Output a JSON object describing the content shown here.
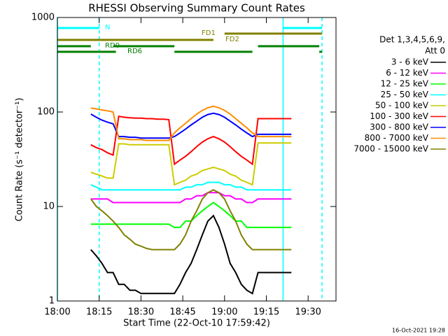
{
  "chart_data": {
    "type": "line",
    "title": "RHESSI Observing Summary Count Rates",
    "x_label": "Start Time (22-Oct-10 17:59:42)",
    "y_label": "Count Rate (s⁻¹ detector⁻¹)",
    "legend_title": [
      "Det 1,3,4,5,6,9,",
      "Att 0"
    ],
    "timestamp": "16-Oct-2021 19:28",
    "log_y": true,
    "xlim": [
      "18:00",
      "19:40"
    ],
    "xticks": [
      "18:00",
      "18:15",
      "18:30",
      "18:45",
      "19:00",
      "19:15",
      "19:30"
    ],
    "ylim": [
      1,
      1000
    ],
    "yticks": [
      1,
      10,
      100,
      1000
    ],
    "x": [
      "18:12",
      "18:14",
      "18:16",
      "18:18",
      "18:20",
      "18:22",
      "18:24",
      "18:26",
      "18:28",
      "18:30",
      "18:32",
      "18:34",
      "18:36",
      "18:38",
      "18:40",
      "18:42",
      "18:44",
      "18:46",
      "18:48",
      "18:50",
      "18:52",
      "18:54",
      "18:56",
      "18:58",
      "19:00",
      "19:02",
      "19:04",
      "19:06",
      "19:08",
      "19:10",
      "19:12",
      "19:14",
      "19:16",
      "19:18",
      "19:20",
      "19:22",
      "19:24"
    ],
    "series": [
      {
        "name": "3 - 6 keV",
        "color": "#000000",
        "values": [
          3.5,
          3,
          2.5,
          2,
          2,
          1.5,
          1.5,
          1.3,
          1.3,
          1.2,
          1.2,
          1.2,
          1.2,
          1.2,
          1.2,
          1.2,
          1.5,
          2,
          2.5,
          3.5,
          5,
          7,
          8,
          6,
          4,
          2.5,
          2,
          1.5,
          1.3,
          1.2,
          2,
          2,
          2,
          2,
          2,
          2,
          2
        ]
      },
      {
        "name": "6 - 12 keV",
        "color": "#ff00ff",
        "values": [
          12,
          12,
          12,
          12,
          11,
          11,
          11,
          11,
          11,
          11,
          11,
          11,
          11,
          11,
          11,
          11,
          11,
          12,
          12,
          13,
          13,
          14,
          14,
          14,
          13,
          13,
          12,
          12,
          11,
          11,
          12,
          12,
          12,
          12,
          12,
          12,
          12
        ]
      },
      {
        "name": "12 - 25 keV",
        "color": "#00ff00",
        "values": [
          6.5,
          6.5,
          6.5,
          6.5,
          6.5,
          6.5,
          6.5,
          6.5,
          6.5,
          6.5,
          6.5,
          6.5,
          6.5,
          6.5,
          6.5,
          6,
          6,
          7,
          7,
          8,
          9,
          10,
          11,
          10,
          9,
          8,
          7,
          7,
          6,
          6,
          6,
          6,
          6,
          6,
          6,
          6,
          6
        ]
      },
      {
        "name": "25 - 50 keV",
        "color": "#00ffff",
        "values": [
          17,
          16,
          15,
          15,
          15,
          15,
          15,
          15,
          15,
          15,
          15,
          15,
          15,
          15,
          15,
          15,
          15,
          16,
          16,
          17,
          17,
          18,
          18,
          18,
          17,
          17,
          16,
          16,
          15,
          15,
          15,
          15,
          15,
          15,
          15,
          15,
          15
        ]
      },
      {
        "name": "50 - 100 keV",
        "color": "#cccc00",
        "values": [
          23,
          22,
          21,
          20,
          20,
          46,
          46,
          45,
          45,
          45,
          45,
          45,
          45,
          45,
          45,
          17,
          18,
          19,
          21,
          22,
          24,
          25,
          26,
          25,
          24,
          22,
          21,
          19,
          18,
          17,
          47,
          47,
          47,
          47,
          47,
          47,
          47
        ]
      },
      {
        "name": "100 - 300 keV",
        "color": "#ff0000",
        "values": [
          45,
          42,
          40,
          37,
          35,
          90,
          88,
          87,
          86,
          86,
          85,
          85,
          84,
          84,
          83,
          28,
          31,
          34,
          38,
          43,
          48,
          52,
          55,
          52,
          48,
          43,
          38,
          34,
          31,
          28,
          85,
          85,
          85,
          85,
          85,
          85,
          85
        ]
      },
      {
        "name": "300 - 800 keV",
        "color": "#0000ff",
        "values": [
          95,
          88,
          82,
          78,
          75,
          55,
          55,
          54,
          54,
          53,
          53,
          53,
          53,
          53,
          53,
          55,
          60,
          66,
          73,
          80,
          88,
          94,
          97,
          94,
          88,
          80,
          73,
          66,
          60,
          55,
          58,
          58,
          58,
          58,
          58,
          58,
          58
        ]
      },
      {
        "name": "800 - 7000 keV",
        "color": "#ff8c00",
        "values": [
          110,
          108,
          105,
          103,
          100,
          52,
          52,
          51,
          51,
          51,
          50,
          50,
          50,
          50,
          50,
          60,
          68,
          76,
          85,
          95,
          104,
          111,
          115,
          111,
          104,
          95,
          85,
          76,
          68,
          60,
          55,
          55,
          55,
          55,
          55,
          55,
          55
        ]
      },
      {
        "name": "7000 - 15000 keV",
        "color": "#808000",
        "values": [
          12,
          10,
          9,
          8,
          7,
          6,
          5,
          4.5,
          4,
          3.8,
          3.6,
          3.5,
          3.5,
          3.5,
          3.5,
          3.5,
          4,
          5,
          7,
          9,
          12,
          14,
          15,
          14,
          12,
          9,
          7,
          5,
          4,
          3.5,
          3.5,
          3.5,
          3.5,
          3.5,
          3.5,
          3.5,
          3.5
        ]
      }
    ],
    "flags": [
      {
        "label": "N",
        "color": "#00ffff",
        "segments": [
          [
            "18:00",
            "18:15"
          ],
          [
            "19:21",
            "19:35"
          ]
        ]
      },
      {
        "label": "FD1",
        "color": "#808000",
        "segments": [
          [
            "19:00",
            "19:35"
          ]
        ]
      },
      {
        "label": "FD2",
        "color": "#808000",
        "segments": [
          [
            "18:00",
            "18:56"
          ]
        ]
      },
      {
        "label": "RD0",
        "color": "#008000",
        "segments": [
          [
            "18:00",
            "18:12"
          ],
          [
            "18:20",
            "18:42"
          ],
          [
            "19:12",
            "19:34"
          ]
        ]
      },
      {
        "label": "RD6",
        "color": "#008000",
        "segments": [
          [
            "18:00",
            "18:21"
          ],
          [
            "18:42",
            "19:10"
          ],
          [
            "19:34",
            "19:35"
          ]
        ]
      }
    ],
    "event_color": "#00ffff",
    "events": [
      {
        "x": "18:00",
        "dashed": false
      },
      {
        "x": "18:15",
        "dashed": true
      },
      {
        "x": "19:21",
        "dashed": false
      },
      {
        "x": "19:35",
        "dashed": true
      }
    ]
  }
}
